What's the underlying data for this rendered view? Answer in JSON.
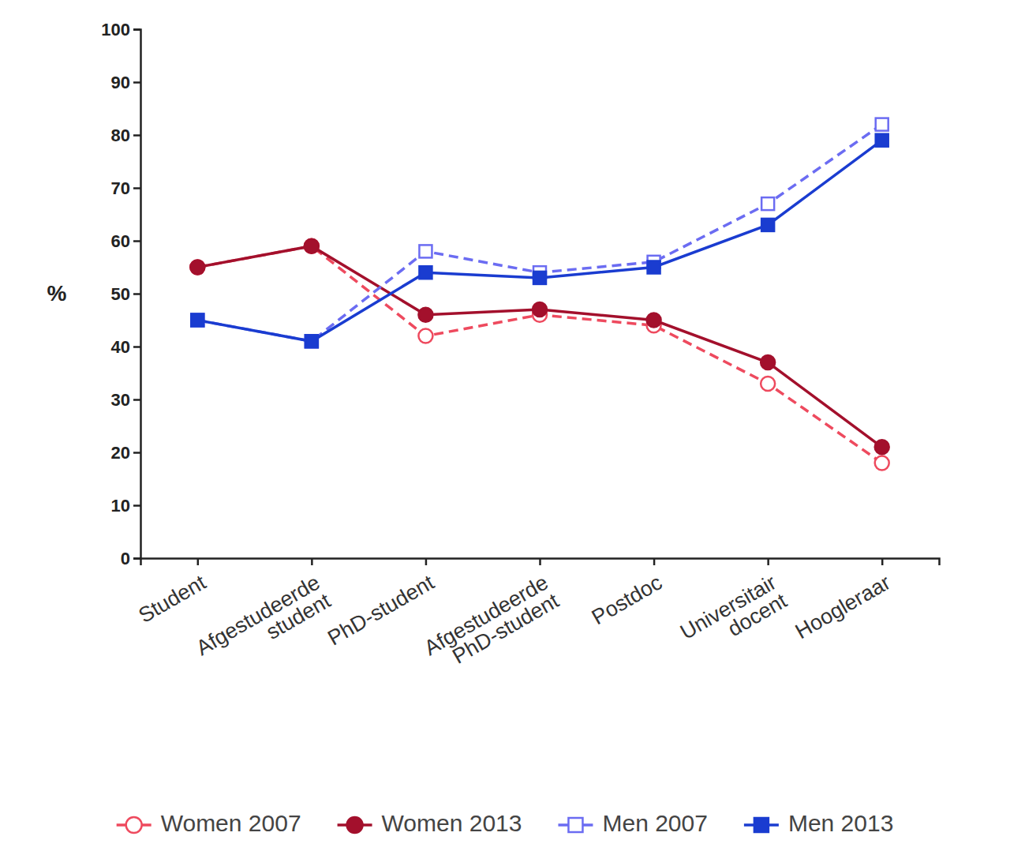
{
  "chart_data": {
    "type": "line",
    "categories": [
      "Student",
      "Afgestudeerde student",
      "PhD-student",
      "Afgestudeerde PhD-student",
      "Postdoc",
      "Universitair docent",
      "Hoogleraar"
    ],
    "y_label": "%",
    "ylim": [
      0,
      100
    ],
    "yticks": [
      0,
      10,
      20,
      30,
      40,
      50,
      60,
      70,
      80,
      90,
      100
    ],
    "grid": false,
    "legend": "bottom",
    "series": [
      {
        "name": "Women 2007",
        "color": "#ee4a5e",
        "marker": "circle-open",
        "line_style": "dashed",
        "values": [
          55,
          59,
          42,
          46,
          44,
          33,
          18
        ]
      },
      {
        "name": "Women 2013",
        "color": "#a3102c",
        "marker": "circle",
        "line_style": "solid",
        "values": [
          55,
          59,
          46,
          47,
          45,
          37,
          21
        ]
      },
      {
        "name": "Men 2007",
        "color": "#6b6cf2",
        "marker": "square-open",
        "line_style": "dashed",
        "values": [
          45,
          41,
          58,
          54,
          56,
          67,
          82
        ]
      },
      {
        "name": "Men 2013",
        "color": "#1a3cd0",
        "marker": "square",
        "line_style": "solid",
        "values": [
          45,
          41,
          54,
          53,
          55,
          63,
          79
        ]
      }
    ]
  }
}
